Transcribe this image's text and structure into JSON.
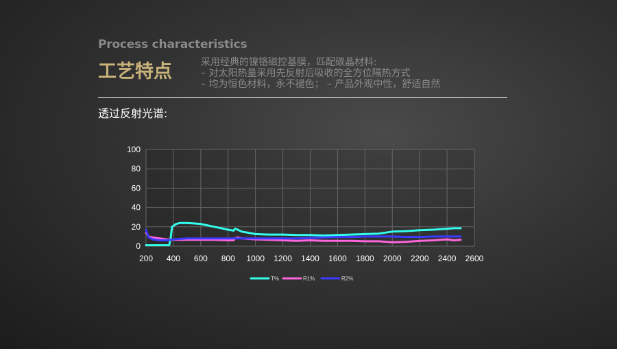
{
  "header": {
    "subtitle_en": "Process characteristics",
    "title_cn": "工艺特点",
    "desc_lines": [
      "采用经典的镍铬磁控基膜，匹配碳晶材料:",
      "– 对太阳热量采用先反射后吸收的全方位隔热方式",
      "– 均为恒色材料，永不褪色；    – 产品外观中性，舒适自然"
    ]
  },
  "section": {
    "label": "透过反射光谱:"
  },
  "chart_data": {
    "type": "line",
    "title": "",
    "xlabel": "",
    "ylabel": "",
    "xlim": [
      200,
      2600
    ],
    "ylim": [
      0,
      100
    ],
    "x_ticks": [
      "200",
      "400",
      "600",
      "800",
      "1000",
      "1200",
      "1400",
      "1600",
      "1800",
      "2000",
      "2200",
      "2400",
      "2600"
    ],
    "y_ticks": [
      "0",
      "20",
      "40",
      "60",
      "80",
      "100"
    ],
    "grid": true,
    "legend": "bottom",
    "series": [
      {
        "name": "T%",
        "color": "#33ffee",
        "x": [
          200,
          300,
          370,
          380,
          390,
          420,
          450,
          500,
          550,
          600,
          700,
          800,
          840,
          850,
          870,
          900,
          1000,
          1100,
          1200,
          1300,
          1400,
          1500,
          1600,
          1700,
          1800,
          1900,
          2000,
          2100,
          2200,
          2300,
          2400,
          2450,
          2500
        ],
        "y": [
          1,
          1,
          1,
          8,
          20,
          23,
          24,
          24,
          23.5,
          23,
          20,
          17,
          16,
          18,
          17,
          15,
          12.5,
          12,
          12,
          11.5,
          11.5,
          11,
          11.5,
          12,
          12.5,
          13,
          15,
          15.5,
          16.5,
          17,
          18,
          18.5,
          18.5
        ]
      },
      {
        "name": "R1%",
        "color": "#ff66dd",
        "x": [
          200,
          220,
          250,
          300,
          350,
          400,
          500,
          600,
          700,
          800,
          840,
          850,
          870,
          900,
          1000,
          1100,
          1200,
          1300,
          1400,
          1500,
          1600,
          1700,
          1800,
          1900,
          2000,
          2100,
          2200,
          2300,
          2400,
          2450,
          2500
        ],
        "y": [
          14,
          10,
          9,
          8,
          7,
          6.5,
          6.5,
          6.5,
          6.5,
          6,
          6,
          8,
          9,
          8,
          7,
          6.5,
          6,
          5.5,
          6,
          5.5,
          5.5,
          5.5,
          5,
          5,
          4,
          4.5,
          5.5,
          6,
          7,
          6,
          6.5
        ]
      },
      {
        "name": "R2%",
        "color": "#3b3bff",
        "x": [
          200,
          220,
          250,
          300,
          350,
          400,
          500,
          600,
          700,
          800,
          850,
          900,
          1000,
          1100,
          1200,
          1300,
          1400,
          1500,
          1600,
          1700,
          1800,
          1900,
          2000,
          2100,
          2200,
          2300,
          2400,
          2450,
          2500
        ],
        "y": [
          17,
          9,
          7,
          6,
          6,
          7,
          8,
          8,
          8,
          8,
          8,
          8,
          8,
          8,
          8,
          8,
          8.5,
          9,
          9.5,
          9.5,
          10,
          10,
          10,
          9.5,
          9.5,
          10,
          10,
          10,
          10
        ]
      }
    ]
  }
}
